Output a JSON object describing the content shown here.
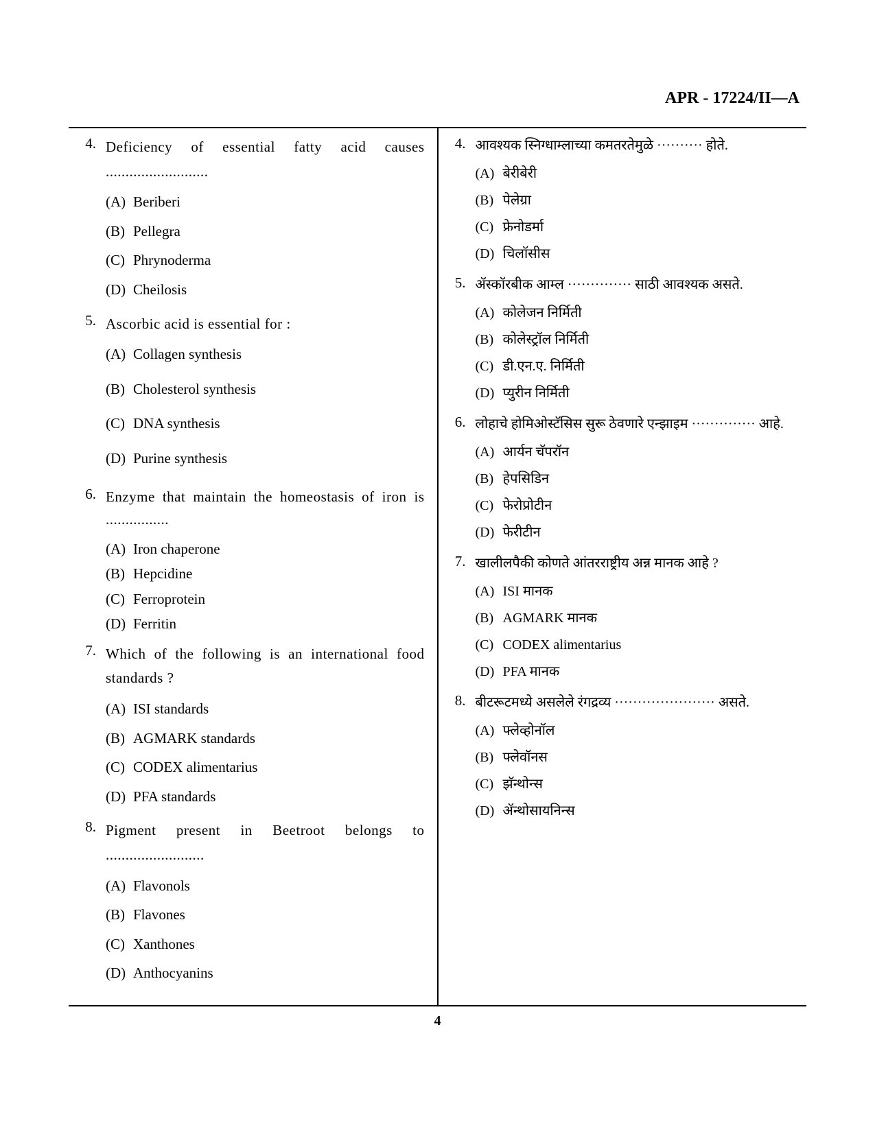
{
  "header": "APR - 17224/II—A",
  "pageNumber": "4",
  "colors": {
    "text": "#000000",
    "background": "#ffffff",
    "border": "#000000"
  },
  "left": {
    "questions": [
      {
        "num": "4.",
        "stem": "Deficiency of essential fatty acid causes ..........................",
        "options": [
          {
            "label": "(A)",
            "text": "Beriberi"
          },
          {
            "label": "(B)",
            "text": "Pellegra"
          },
          {
            "label": "(C)",
            "text": "Phrynoderma"
          },
          {
            "label": "(D)",
            "text": "Cheilosis"
          }
        ]
      },
      {
        "num": "5.",
        "stem": "Ascorbic acid is essential for :",
        "options": [
          {
            "label": "(A)",
            "text": "Collagen synthesis"
          },
          {
            "label": "(B)",
            "text": "Cholesterol synthesis"
          },
          {
            "label": "(C)",
            "text": "DNA synthesis"
          },
          {
            "label": "(D)",
            "text": "Purine synthesis"
          }
        ]
      },
      {
        "num": "6.",
        "stem": "Enzyme that maintain the homeostasis of iron is ................",
        "options": [
          {
            "label": "(A)",
            "text": "Iron chaperone"
          },
          {
            "label": "(B)",
            "text": "Hepcidine"
          },
          {
            "label": "(C)",
            "text": "Ferroprotein"
          },
          {
            "label": "(D)",
            "text": "Ferritin"
          }
        ]
      },
      {
        "num": "7.",
        "stem": "Which of the following is an international food standards ?",
        "options": [
          {
            "label": "(A)",
            "text": "ISI standards"
          },
          {
            "label": "(B)",
            "text": "AGMARK standards"
          },
          {
            "label": "(C)",
            "text": "CODEX alimentarius"
          },
          {
            "label": "(D)",
            "text": "PFA standards"
          }
        ]
      },
      {
        "num": "8.",
        "stem": "Pigment present in Beetroot belongs to .........................",
        "options": [
          {
            "label": "(A)",
            "text": "Flavonols"
          },
          {
            "label": "(B)",
            "text": "Flavones"
          },
          {
            "label": "(C)",
            "text": "Xanthones"
          },
          {
            "label": "(D)",
            "text": "Anthocyanins"
          }
        ]
      }
    ]
  },
  "right": {
    "questions": [
      {
        "num": "4.",
        "stem": "आवश्यक स्निग्धाम्लाच्या कमतरतेमुळे ·········· होते.",
        "options": [
          {
            "label": "(A)",
            "text": "बेरीबेरी"
          },
          {
            "label": "(B)",
            "text": "पेलेग्रा"
          },
          {
            "label": "(C)",
            "text": "फ्रेनोडर्मा"
          },
          {
            "label": "(D)",
            "text": "चिलॉसीस"
          }
        ]
      },
      {
        "num": "5.",
        "stem": "ॲस्कॉरबीक आम्ल ·············· साठी आवश्यक असते.",
        "options": [
          {
            "label": "(A)",
            "text": "कोलेजन निर्मिती"
          },
          {
            "label": "(B)",
            "text": "कोलेस्ट्रॉल निर्मिती"
          },
          {
            "label": "(C)",
            "text": "डी.एन.ए. निर्मिती"
          },
          {
            "label": "(D)",
            "text": "प्युरीन निर्मिती"
          }
        ]
      },
      {
        "num": "6.",
        "stem": "लोहाचे होमिओस्टॅसिस सुरू ठेवणारे एन्झाइम ·············· आहे.",
        "options": [
          {
            "label": "(A)",
            "text": "आर्यन चॅपरॉन"
          },
          {
            "label": "(B)",
            "text": "हेपसिडिन"
          },
          {
            "label": "(C)",
            "text": "फेरोप्रोटीन"
          },
          {
            "label": "(D)",
            "text": "फेरीटीन"
          }
        ]
      },
      {
        "num": "7.",
        "stem": "खालीलपैकी कोणते आंतरराष्ट्रीय अन्न मानक आहे ?",
        "options": [
          {
            "label": "(A)",
            "text": "ISI मानक"
          },
          {
            "label": "(B)",
            "text": "AGMARK मानक"
          },
          {
            "label": "(C)",
            "text": "CODEX alimentarius"
          },
          {
            "label": "(D)",
            "text": "PFA मानक"
          }
        ]
      },
      {
        "num": "8.",
        "stem": "बीटरूटमध्ये असलेले रंगद्रव्य ······················ असते.",
        "options": [
          {
            "label": "(A)",
            "text": "फ्लेव्होनॉल"
          },
          {
            "label": "(B)",
            "text": "फ्लेवॉनस"
          },
          {
            "label": "(C)",
            "text": "झॅन्थोन्स"
          },
          {
            "label": "(D)",
            "text": "ॲन्थोसायनिन्स"
          }
        ]
      }
    ]
  }
}
